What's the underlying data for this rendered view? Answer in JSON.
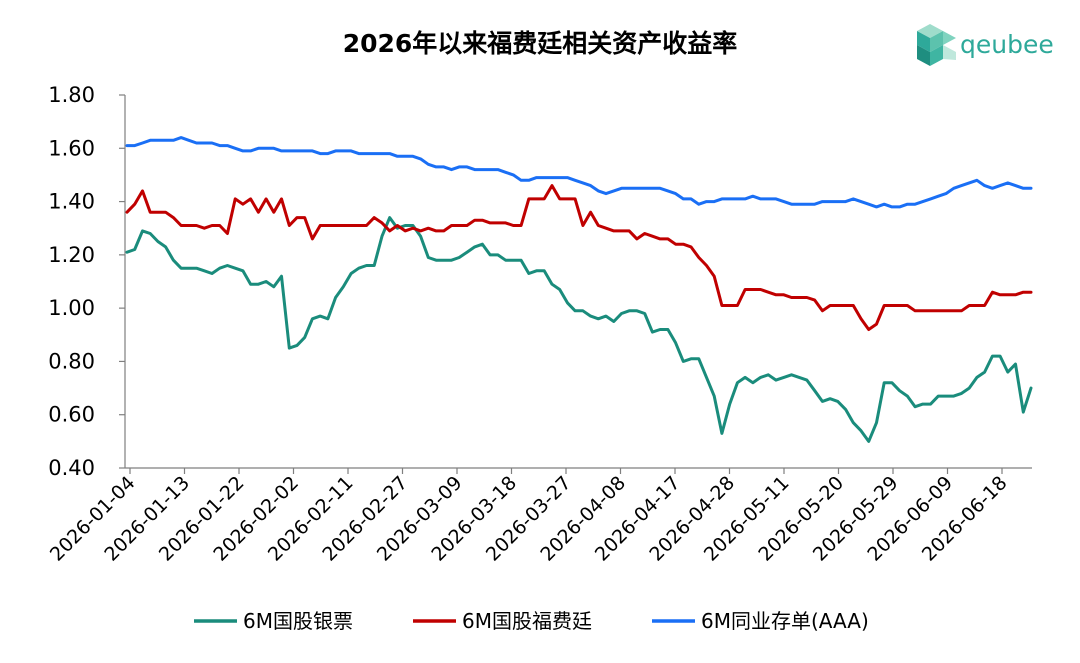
{
  "logo": {
    "text": "qeubee",
    "color": "#2ea99a"
  },
  "chart_data": {
    "type": "line",
    "title": "2026年以来福费廷相关资产收益率",
    "xlabel": "",
    "ylabel": "",
    "ylim": [
      0.4,
      1.8
    ],
    "yticks": [
      "0.40",
      "0.60",
      "0.80",
      "1.00",
      "1.20",
      "1.40",
      "1.60",
      "1.80"
    ],
    "x_tick_labels": [
      "2026-01-04",
      "2026-01-13",
      "2026-01-22",
      "2026-02-02",
      "2026-02-11",
      "2026-02-27",
      "2026-03-09",
      "2026-03-18",
      "2026-03-27",
      "2026-04-08",
      "2026-04-17",
      "2026-04-28",
      "2026-05-11",
      "2026-05-20",
      "2026-05-29",
      "2026-06-09",
      "2026-06-18"
    ],
    "grid": false,
    "legend_position": "bottom",
    "series": [
      {
        "name": "6M国股银票",
        "color": "#1a8c7c",
        "values": [
          1.21,
          1.22,
          1.29,
          1.28,
          1.25,
          1.23,
          1.18,
          1.15,
          1.15,
          1.15,
          1.14,
          1.13,
          1.15,
          1.16,
          1.15,
          1.14,
          1.09,
          1.09,
          1.1,
          1.08,
          1.12,
          0.85,
          0.86,
          0.89,
          0.96,
          0.97,
          0.96,
          1.04,
          1.08,
          1.13,
          1.15,
          1.16,
          1.16,
          1.27,
          1.34,
          1.3,
          1.31,
          1.31,
          1.27,
          1.19,
          1.18,
          1.18,
          1.18,
          1.19,
          1.21,
          1.23,
          1.24,
          1.2,
          1.2,
          1.18,
          1.18,
          1.18,
          1.13,
          1.14,
          1.14,
          1.09,
          1.07,
          1.02,
          0.99,
          0.99,
          0.97,
          0.96,
          0.97,
          0.95,
          0.98,
          0.99,
          0.99,
          0.98,
          0.91,
          0.92,
          0.92,
          0.87,
          0.8,
          0.81,
          0.81,
          0.74,
          0.67,
          0.53,
          0.64,
          0.72,
          0.74,
          0.72,
          0.74,
          0.75,
          0.73,
          0.74,
          0.75,
          0.74,
          0.73,
          0.69,
          0.65,
          0.66,
          0.65,
          0.62,
          0.57,
          0.54,
          0.5,
          0.57,
          0.72,
          0.72,
          0.69,
          0.67,
          0.63,
          0.64,
          0.64,
          0.67,
          0.67,
          0.67,
          0.68,
          0.7,
          0.74,
          0.76,
          0.82,
          0.82,
          0.76,
          0.79,
          0.61,
          0.7
        ]
      },
      {
        "name": "6M国股福费廷",
        "color": "#c00000",
        "values": [
          1.36,
          1.39,
          1.44,
          1.36,
          1.36,
          1.36,
          1.34,
          1.31,
          1.31,
          1.31,
          1.3,
          1.31,
          1.31,
          1.28,
          1.41,
          1.39,
          1.41,
          1.36,
          1.41,
          1.36,
          1.41,
          1.31,
          1.34,
          1.34,
          1.26,
          1.31,
          1.31,
          1.31,
          1.31,
          1.31,
          1.31,
          1.31,
          1.34,
          1.32,
          1.29,
          1.31,
          1.29,
          1.3,
          1.29,
          1.3,
          1.29,
          1.29,
          1.31,
          1.31,
          1.31,
          1.33,
          1.33,
          1.32,
          1.32,
          1.32,
          1.31,
          1.31,
          1.41,
          1.41,
          1.41,
          1.46,
          1.41,
          1.41,
          1.41,
          1.31,
          1.36,
          1.31,
          1.3,
          1.29,
          1.29,
          1.29,
          1.26,
          1.28,
          1.27,
          1.26,
          1.26,
          1.24,
          1.24,
          1.23,
          1.19,
          1.16,
          1.12,
          1.01,
          1.01,
          1.01,
          1.07,
          1.07,
          1.07,
          1.06,
          1.05,
          1.05,
          1.04,
          1.04,
          1.04,
          1.03,
          0.99,
          1.01,
          1.01,
          1.01,
          1.01,
          0.96,
          0.92,
          0.94,
          1.01,
          1.01,
          1.01,
          1.01,
          0.99,
          0.99,
          0.99,
          0.99,
          0.99,
          0.99,
          0.99,
          1.01,
          1.01,
          1.01,
          1.06,
          1.05,
          1.05,
          1.05,
          1.06,
          1.06
        ]
      },
      {
        "name": "6M同业存单(AAA)",
        "color": "#1a6ff5",
        "values": [
          1.61,
          1.61,
          1.62,
          1.63,
          1.63,
          1.63,
          1.63,
          1.64,
          1.63,
          1.62,
          1.62,
          1.62,
          1.61,
          1.61,
          1.6,
          1.59,
          1.59,
          1.6,
          1.6,
          1.6,
          1.59,
          1.59,
          1.59,
          1.59,
          1.59,
          1.58,
          1.58,
          1.59,
          1.59,
          1.59,
          1.58,
          1.58,
          1.58,
          1.58,
          1.58,
          1.57,
          1.57,
          1.57,
          1.56,
          1.54,
          1.53,
          1.53,
          1.52,
          1.53,
          1.53,
          1.52,
          1.52,
          1.52,
          1.52,
          1.51,
          1.5,
          1.48,
          1.48,
          1.49,
          1.49,
          1.49,
          1.49,
          1.49,
          1.48,
          1.47,
          1.46,
          1.44,
          1.43,
          1.44,
          1.45,
          1.45,
          1.45,
          1.45,
          1.45,
          1.45,
          1.44,
          1.43,
          1.41,
          1.41,
          1.39,
          1.4,
          1.4,
          1.41,
          1.41,
          1.41,
          1.41,
          1.42,
          1.41,
          1.41,
          1.41,
          1.4,
          1.39,
          1.39,
          1.39,
          1.39,
          1.4,
          1.4,
          1.4,
          1.4,
          1.41,
          1.4,
          1.39,
          1.38,
          1.39,
          1.38,
          1.38,
          1.39,
          1.39,
          1.4,
          1.41,
          1.42,
          1.43,
          1.45,
          1.46,
          1.47,
          1.48,
          1.46,
          1.45,
          1.46,
          1.47,
          1.46,
          1.45,
          1.45
        ]
      }
    ]
  }
}
